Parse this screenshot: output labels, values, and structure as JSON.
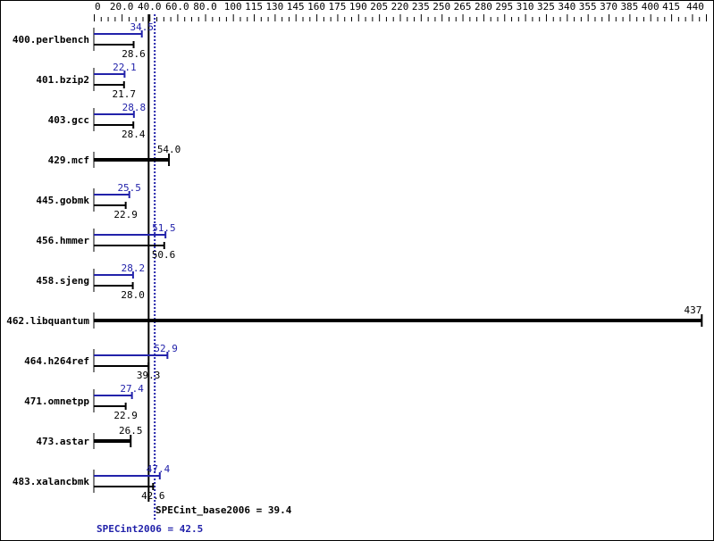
{
  "chart_data": {
    "type": "bar",
    "orientation": "horizontal",
    "xlim": [
      0,
      440
    ],
    "tick_labels": [
      "0",
      "20.0",
      "40.0",
      "60.0",
      "80.0",
      "100",
      "115",
      "130",
      "145",
      "160",
      "175",
      "190",
      "205",
      "220",
      "235",
      "250",
      "265",
      "280",
      "295",
      "310",
      "325",
      "340",
      "355",
      "370",
      "385",
      "400",
      "415",
      "440"
    ],
    "categories": [
      "400.perlbench",
      "401.bzip2",
      "403.gcc",
      "429.mcf",
      "445.gobmk",
      "456.hmmer",
      "458.sjeng",
      "462.libquantum",
      "464.h264ref",
      "471.omnetpp",
      "473.astar",
      "483.xalancbmk"
    ],
    "series": [
      {
        "name": "SPECint2006",
        "color": "#2222aa",
        "values": [
          34.5,
          22.1,
          28.8,
          null,
          25.5,
          51.5,
          28.2,
          null,
          52.9,
          27.4,
          null,
          47.4
        ]
      },
      {
        "name": "SPECint_base2006",
        "color": "#000000",
        "values": [
          28.6,
          21.7,
          28.4,
          54.0,
          22.9,
          50.6,
          28.0,
          437,
          39.3,
          22.9,
          26.5,
          42.6
        ]
      }
    ],
    "reference_lines": [
      {
        "label": "SPECint_base2006 = 39.4",
        "value": 39.4,
        "color": "#000000",
        "style": "solid"
      },
      {
        "label": "SPECint2006 = 42.5",
        "value": 42.5,
        "color": "#2222aa",
        "style": "dotted"
      }
    ]
  }
}
